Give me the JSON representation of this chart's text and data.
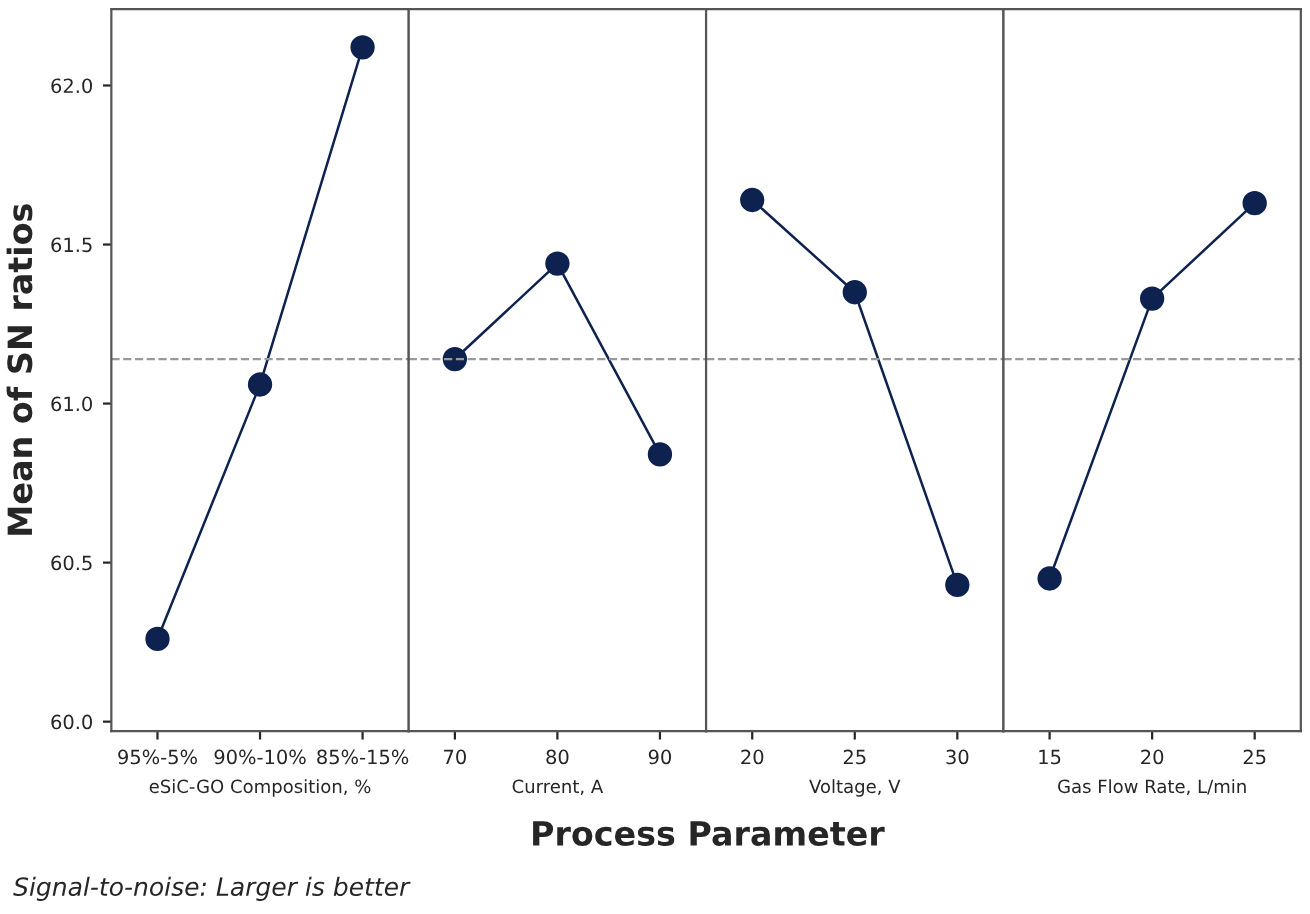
{
  "chart_data": [
    {
      "type": "line",
      "xlabel": "eSiC-GO Composition, %",
      "ylabel": "Mean of SN ratios",
      "categories": [
        "95%-5%",
        "90%-10%",
        "85%-15%"
      ],
      "series": [
        {
          "color": "#0e2250",
          "values": [
            60.26,
            61.06,
            62.12
          ]
        }
      ],
      "ylim": [
        59.97,
        62.24
      ],
      "yticks": [
        {
          "value": 60.0,
          "label": "60.0"
        },
        {
          "value": 60.5,
          "label": "60.5"
        },
        {
          "value": 61.0,
          "label": "61.0"
        },
        {
          "value": 61.5,
          "label": "61.5"
        },
        {
          "value": 62.0,
          "label": "62.0"
        }
      ],
      "ref_lines": [
        {
          "axis": "y",
          "value": 61.14,
          "line_style": "dashed",
          "color": "#999999"
        }
      ],
      "marker": "circle",
      "line_style": "solid",
      "grid": false,
      "legend": false,
      "annotations": [
        "Process Parameter",
        "Signal-to-noise: Larger is better"
      ]
    },
    {
      "type": "line",
      "xlabel": "Current, A",
      "categories": [
        "70",
        "80",
        "90"
      ],
      "series": [
        {
          "color": "#0e2250",
          "values": [
            61.14,
            61.44,
            60.84
          ]
        }
      ],
      "ylim": [
        59.97,
        62.24
      ],
      "tick_labels": "x",
      "ref_lines": [
        {
          "axis": "y",
          "value": 61.14,
          "line_style": "dashed",
          "color": "#999999"
        }
      ],
      "marker": "circle",
      "line_style": "solid",
      "grid": false,
      "legend": false
    },
    {
      "type": "line",
      "xlabel": "Voltage, V",
      "categories": [
        "20",
        "25",
        "30"
      ],
      "series": [
        {
          "color": "#0e2250",
          "values": [
            61.64,
            61.35,
            60.43
          ]
        }
      ],
      "ylim": [
        59.97,
        62.24
      ],
      "tick_labels": "x",
      "ref_lines": [
        {
          "axis": "y",
          "value": 61.14,
          "line_style": "dashed",
          "color": "#999999"
        }
      ],
      "marker": "circle",
      "line_style": "solid",
      "grid": false,
      "legend": false
    },
    {
      "type": "line",
      "xlabel": "Gas Flow Rate, L/min",
      "categories": [
        "15",
        "20",
        "25"
      ],
      "series": [
        {
          "color": "#0e2250",
          "values": [
            60.45,
            61.33,
            61.63
          ]
        }
      ],
      "ylim": [
        59.97,
        62.24
      ],
      "tick_labels": "x",
      "ref_lines": [
        {
          "axis": "y",
          "value": 61.14,
          "line_style": "dashed",
          "color": "#999999"
        }
      ],
      "marker": "circle",
      "line_style": "solid",
      "grid": false,
      "legend": false
    }
  ]
}
